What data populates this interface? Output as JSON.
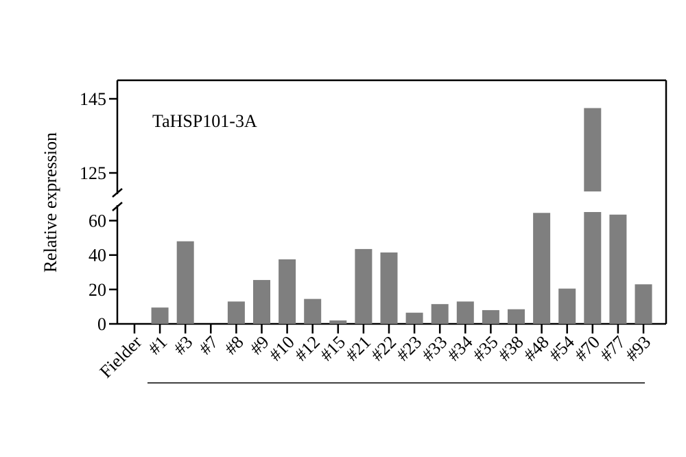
{
  "chart_data": {
    "type": "bar",
    "title": "TaHSP101-3A",
    "xlabel": "",
    "ylabel": "Relative expression",
    "categories": [
      "Fielder",
      "#1",
      "#3",
      "#7",
      "#8",
      "#9",
      "#10",
      "#12",
      "#15",
      "#21",
      "#22",
      "#23",
      "#33",
      "#34",
      "#35",
      "#38",
      "#48",
      "#54",
      "#70",
      "#77",
      "#93"
    ],
    "values": [
      0,
      9.5,
      48,
      0,
      13,
      25.5,
      37.5,
      14.5,
      2,
      43.5,
      41.5,
      6.5,
      11.5,
      13,
      8,
      8.5,
      64.5,
      20.5,
      142.5,
      63.5,
      23
    ],
    "bar_color": "#7f7f7f",
    "axis_break": {
      "lower_range": [
        0,
        65
      ],
      "upper_range": [
        120,
        150
      ]
    },
    "yticks_lower": [
      0,
      20,
      40,
      60
    ],
    "yticks_upper": [
      125,
      145
    ],
    "ytick_labels_lower": [
      "0",
      "20",
      "40",
      "60"
    ],
    "ytick_labels_upper": [
      "125",
      "145"
    ],
    "grid": false,
    "legend": "none",
    "underline_group": "#1 – #93"
  }
}
